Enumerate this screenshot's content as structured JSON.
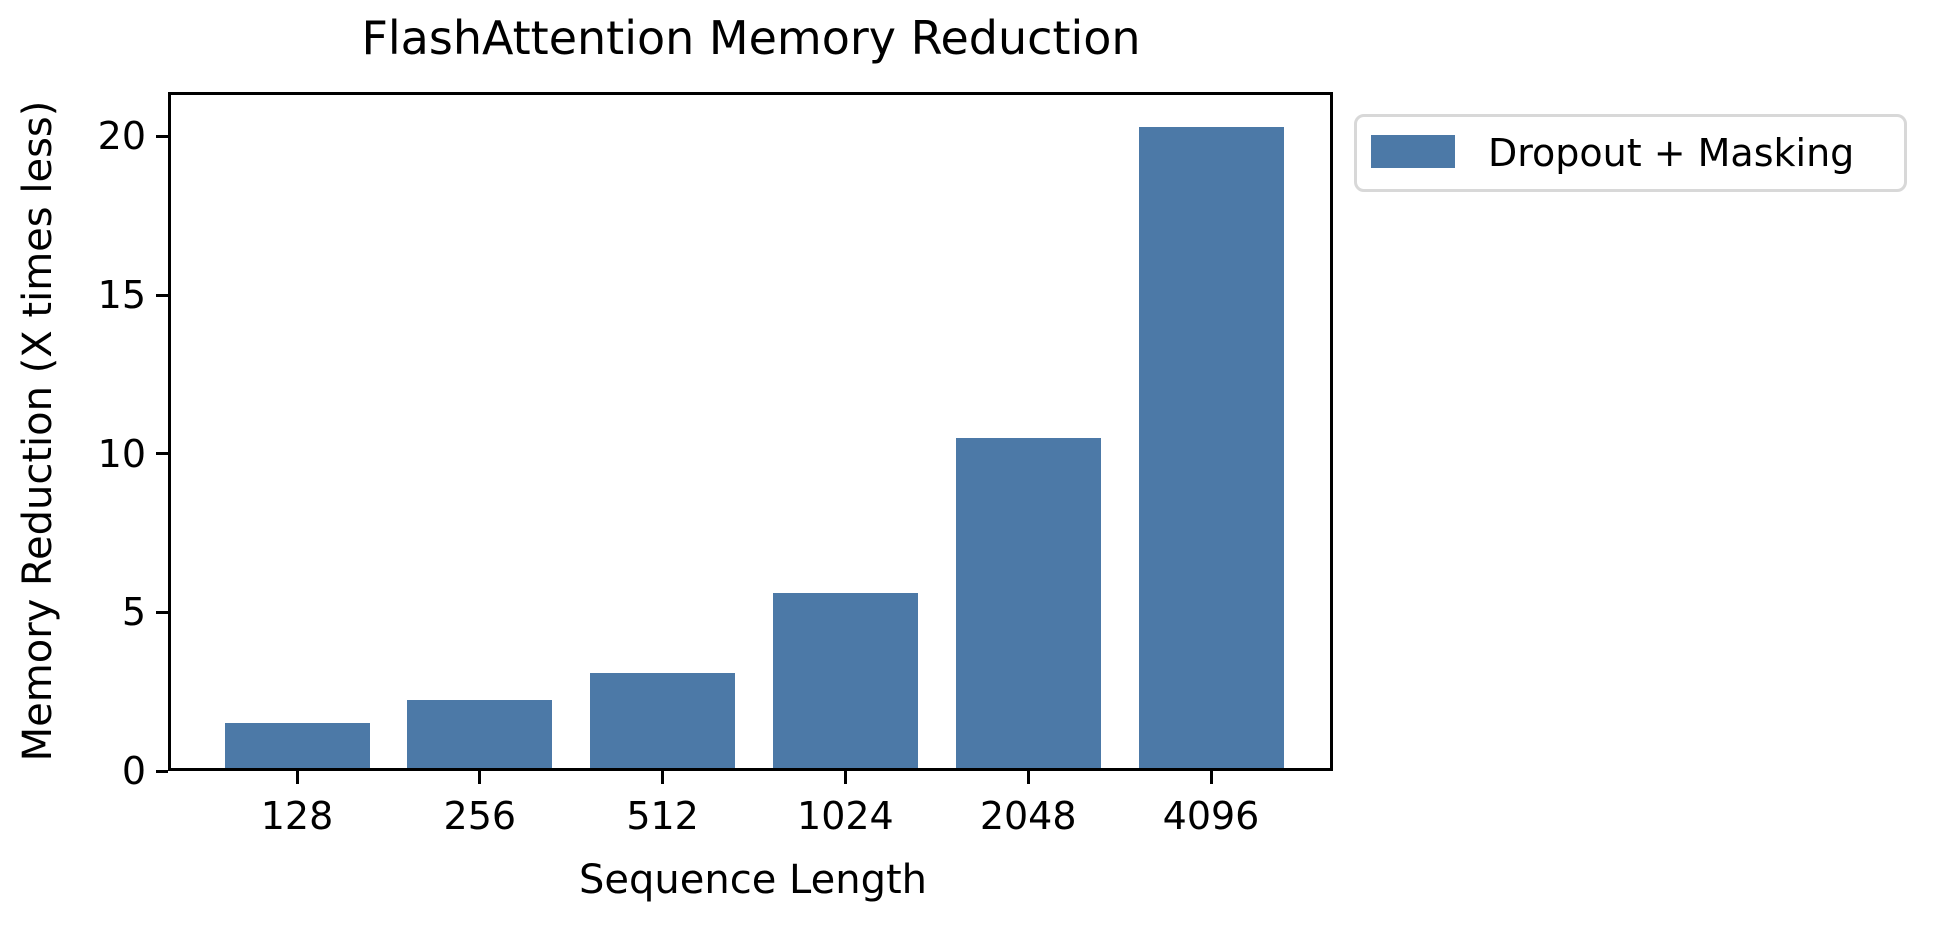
{
  "chart_data": {
    "type": "bar",
    "title": "FlashAttention Memory Reduction",
    "xlabel": "Sequence Length",
    "ylabel": "Memory Reduction (X times less)",
    "categories": [
      "128",
      "256",
      "512",
      "1024",
      "2048",
      "4096"
    ],
    "values": [
      1.5,
      2.25,
      3.1,
      5.6,
      10.5,
      20.3
    ],
    "ylim": [
      0,
      21.4
    ],
    "yticks": [
      0,
      5,
      10,
      15,
      20
    ],
    "bar_color": "#4c79a7",
    "grid": false,
    "legend": {
      "position": "outside-upper-right",
      "entries": [
        {
          "label": "Dropout + Masking",
          "color": "#4c79a7"
        }
      ]
    }
  }
}
